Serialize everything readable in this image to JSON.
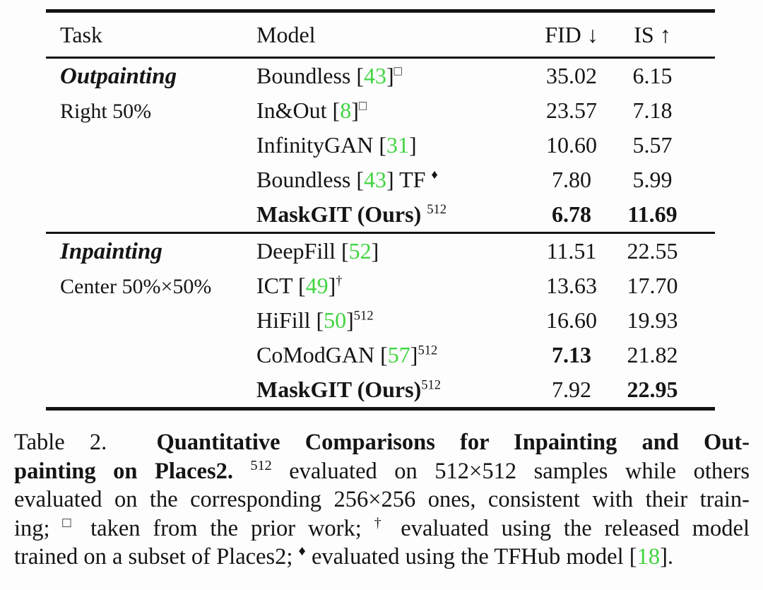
{
  "colors": {
    "citation_green": "#41d441",
    "text": "#141414"
  },
  "table": {
    "headers": {
      "task": "Task",
      "model": "Model",
      "fid": "FID ↓",
      "is": "IS ↑"
    },
    "sections": [
      {
        "task_title": "Outpainting",
        "task_subtitle": "Right 50%",
        "rows": [
          {
            "model": "Boundless",
            "cite": "43",
            "sup": "□",
            "fid": "35.02",
            "is": "6.15"
          },
          {
            "model": "In&Out",
            "cite": "8",
            "sup": "□",
            "fid": "23.57",
            "is": "7.18"
          },
          {
            "model": "InfinityGAN",
            "cite": "31",
            "fid": "10.60",
            "is": "5.57"
          },
          {
            "model": "Boundless",
            "cite": "43",
            "after": " TF",
            "sup": "♦",
            "sup_gap": true,
            "fid": "7.80",
            "is": "5.99"
          },
          {
            "model": "MaskGIT (Ours)",
            "sup": "512",
            "sup_gap": true,
            "model_bold": true,
            "fid": "6.78",
            "fid_bold": true,
            "is": "11.69",
            "is_bold": true
          }
        ]
      },
      {
        "task_title": "Inpainting",
        "task_subtitle": "Center 50%×50%",
        "rows": [
          {
            "model": "DeepFill",
            "cite": "52",
            "fid": "11.51",
            "is": "22.55"
          },
          {
            "model": "ICT",
            "cite": "49",
            "sup": "†",
            "fid": "13.63",
            "is": "17.70"
          },
          {
            "model": "HiFill",
            "cite": "50",
            "sup": "512",
            "fid": "16.60",
            "is": "19.93"
          },
          {
            "model": "CoModGAN",
            "cite": "57",
            "sup": "512",
            "fid": "7.13",
            "fid_bold": true,
            "is": "21.82"
          },
          {
            "model": "MaskGIT (Ours)",
            "sup": "512",
            "model_bold": true,
            "fid": "7.92",
            "is": "22.95",
            "is_bold": true
          }
        ]
      }
    ]
  },
  "caption": {
    "lines": [
      [
        {
          "t": "Table 2.  "
        },
        {
          "t": "Quantitative Comparisons for Inpainting and Out-",
          "b": true
        }
      ],
      [
        {
          "t": "painting on Places2.",
          "b": true
        },
        {
          "t": " "
        },
        {
          "t": "512",
          "sup": true
        },
        {
          "t": " evaluated on 512×512 samples while others"
        }
      ],
      [
        {
          "t": "evaluated on the corresponding 256×256 ones, consistent with their train-"
        }
      ],
      [
        {
          "t": "ing; "
        },
        {
          "t": "□",
          "sup": true
        },
        {
          "t": " taken from the prior work; "
        },
        {
          "t": "†",
          "sup": true
        },
        {
          "t": " evaluated using the released model"
        }
      ],
      [
        {
          "t": "trained on a subset of Places2; "
        },
        {
          "t": "♦",
          "sup": true
        },
        {
          "t": " evaluated using the TFHub model ["
        },
        {
          "t": "18",
          "green": true
        },
        {
          "t": "]."
        }
      ]
    ]
  }
}
